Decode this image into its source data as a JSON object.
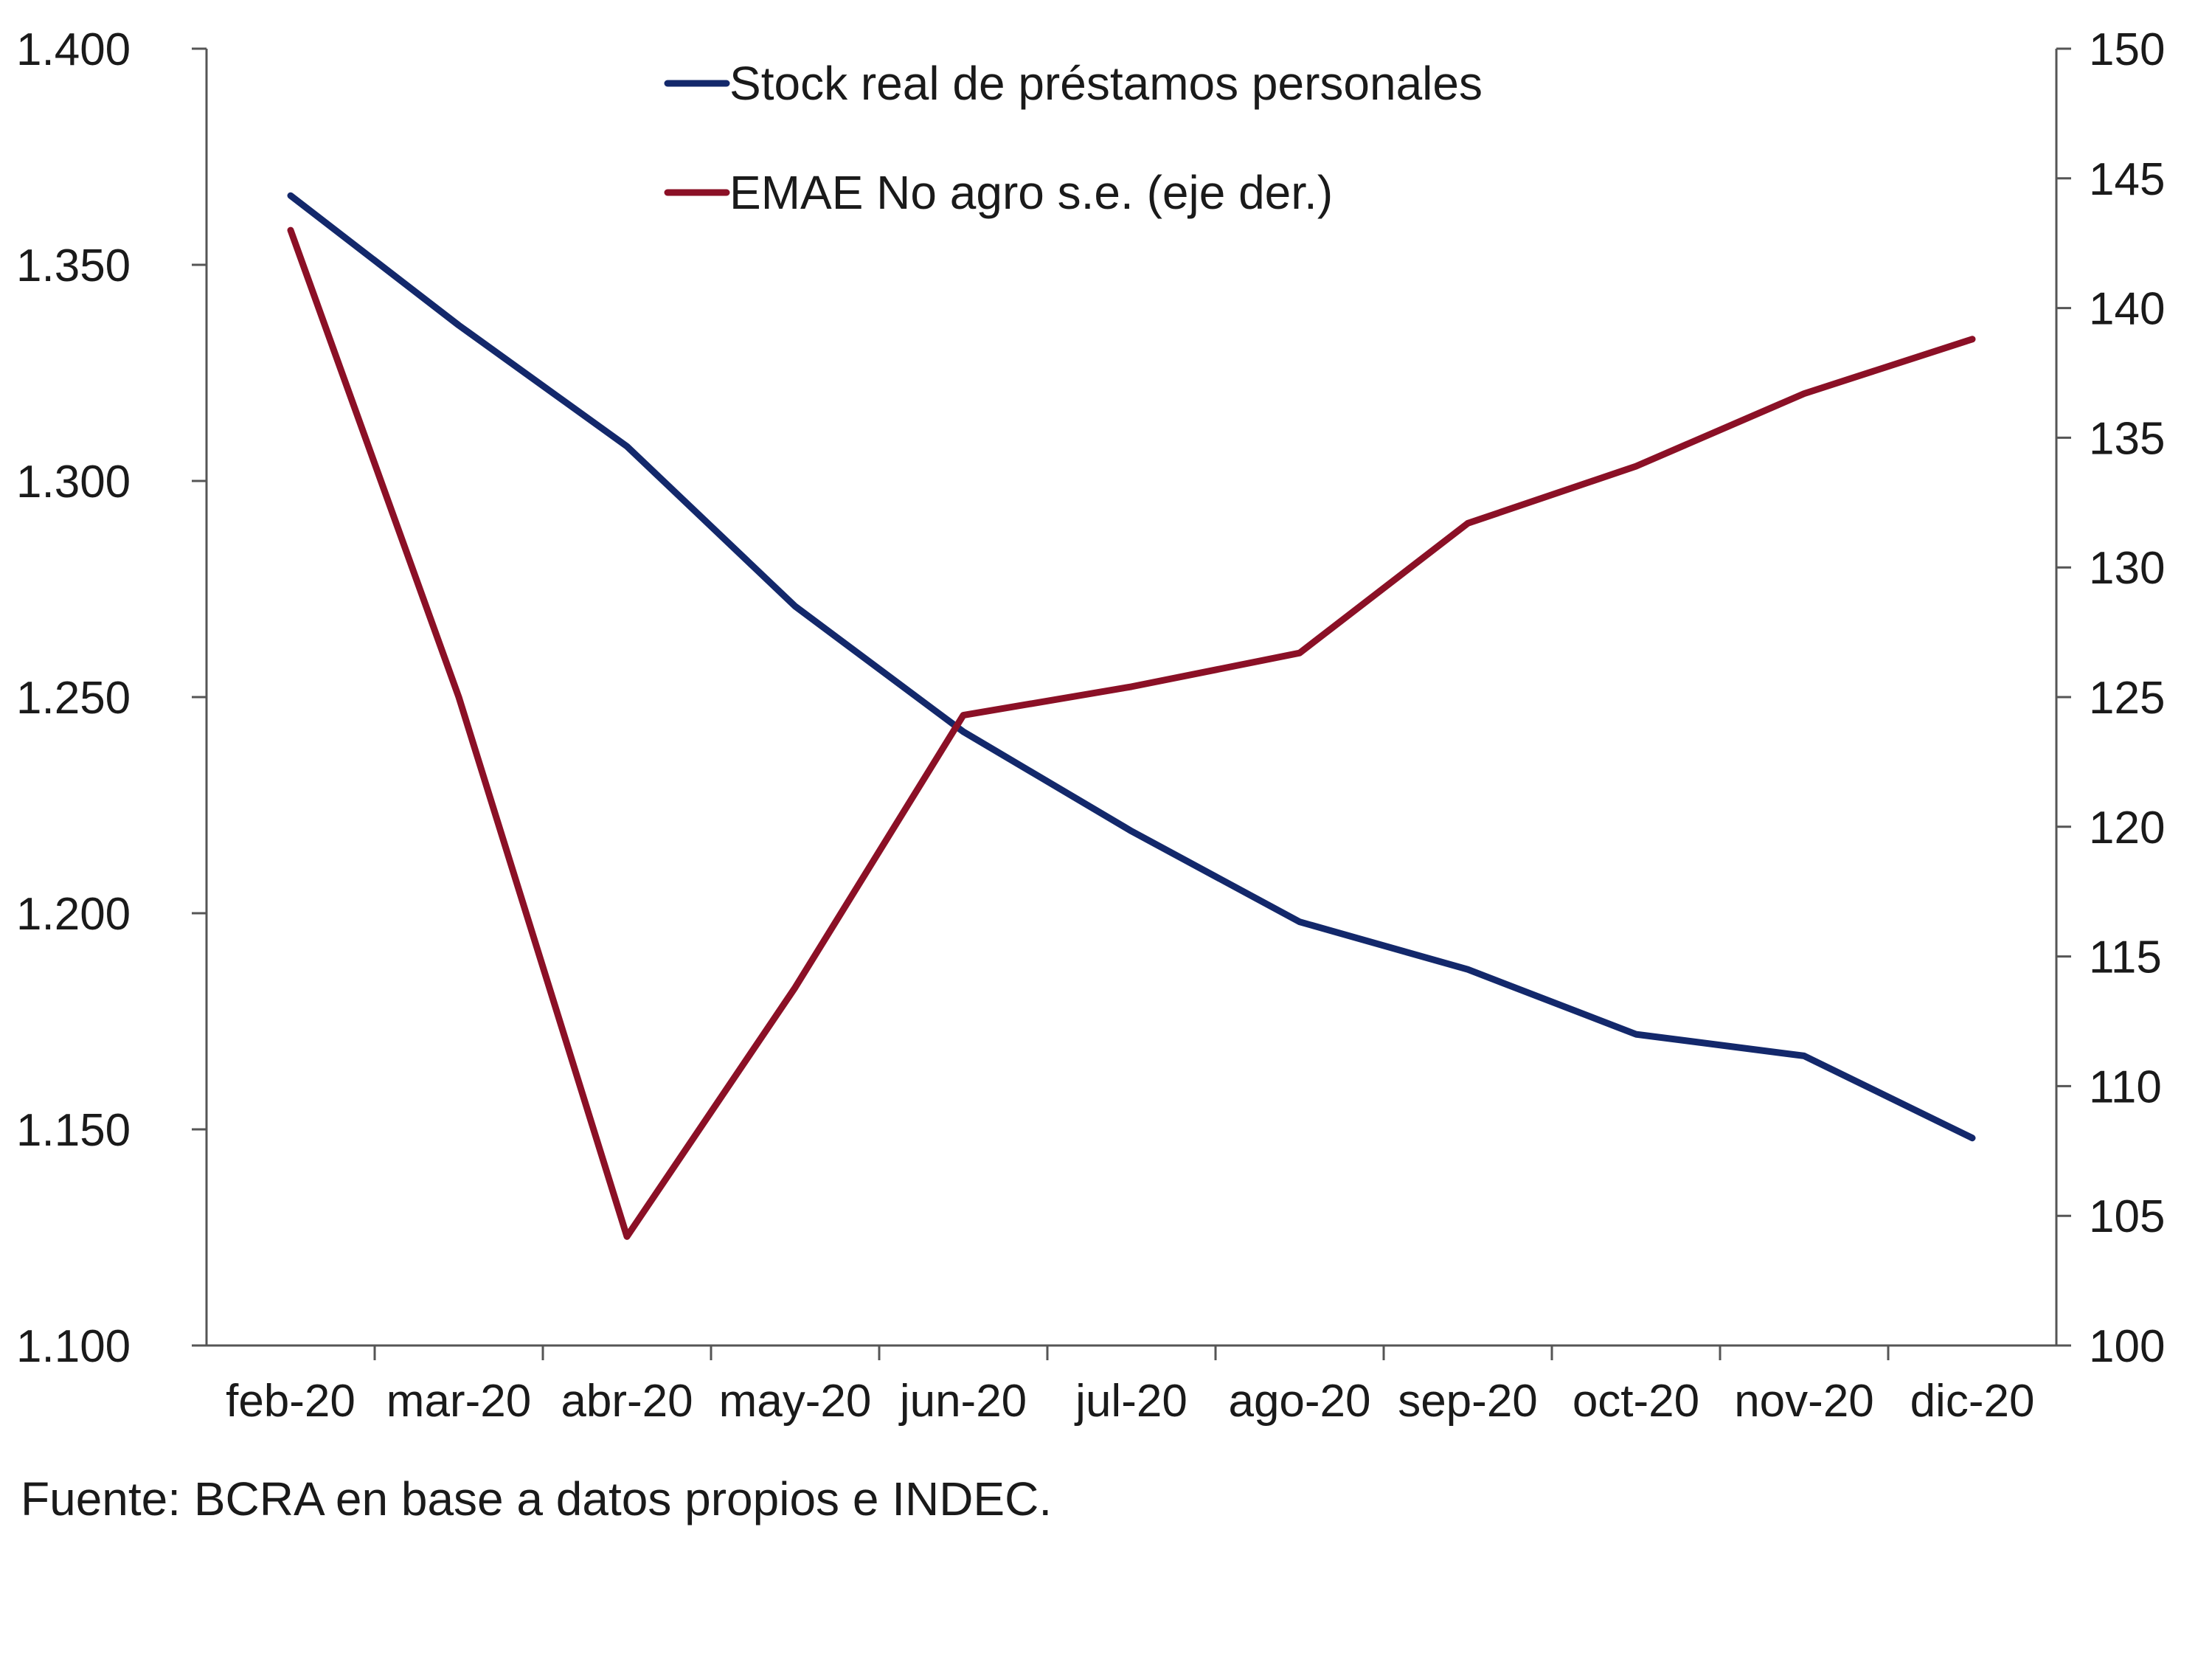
{
  "chart_data": {
    "type": "line",
    "title": "",
    "xlabel": "",
    "ylabel": "",
    "categories": [
      "feb-20",
      "mar-20",
      "abr-20",
      "may-20",
      "jun-20",
      "jul-20",
      "ago-20",
      "sep-20",
      "oct-20",
      "nov-20",
      "dic-20"
    ],
    "y_left": {
      "lim": [
        1100,
        1400
      ],
      "ticks": [
        1100,
        1150,
        1200,
        1250,
        1300,
        1350,
        1400
      ],
      "tick_labels": [
        "1.100",
        "1.150",
        "1.200",
        "1.250",
        "1.300",
        "1.350",
        "1.400"
      ]
    },
    "y_right": {
      "lim": [
        100,
        150
      ],
      "ticks": [
        100,
        105,
        110,
        115,
        120,
        125,
        130,
        135,
        140,
        145,
        150
      ],
      "tick_labels": [
        "100",
        "105",
        "110",
        "115",
        "120",
        "125",
        "130",
        "135",
        "140",
        "145",
        "150"
      ]
    },
    "series": [
      {
        "name": "Stock real de préstamos personales",
        "axis": "left",
        "color": "#13286b",
        "values": [
          1366,
          1336,
          1308,
          1271,
          1242,
          1219,
          1198,
          1187,
          1172,
          1167,
          1148
        ]
      },
      {
        "name": "EMAE No agro s.e. (eje der.)",
        "axis": "right",
        "color": "#8b1026",
        "values": [
          143.0,
          125.0,
          104.2,
          113.8,
          124.3,
          125.4,
          126.7,
          131.7,
          133.9,
          136.7,
          138.8
        ]
      }
    ],
    "legend_position": "top-center",
    "grid": false
  },
  "source": "Fuente: BCRA en base a datos propios e INDEC."
}
